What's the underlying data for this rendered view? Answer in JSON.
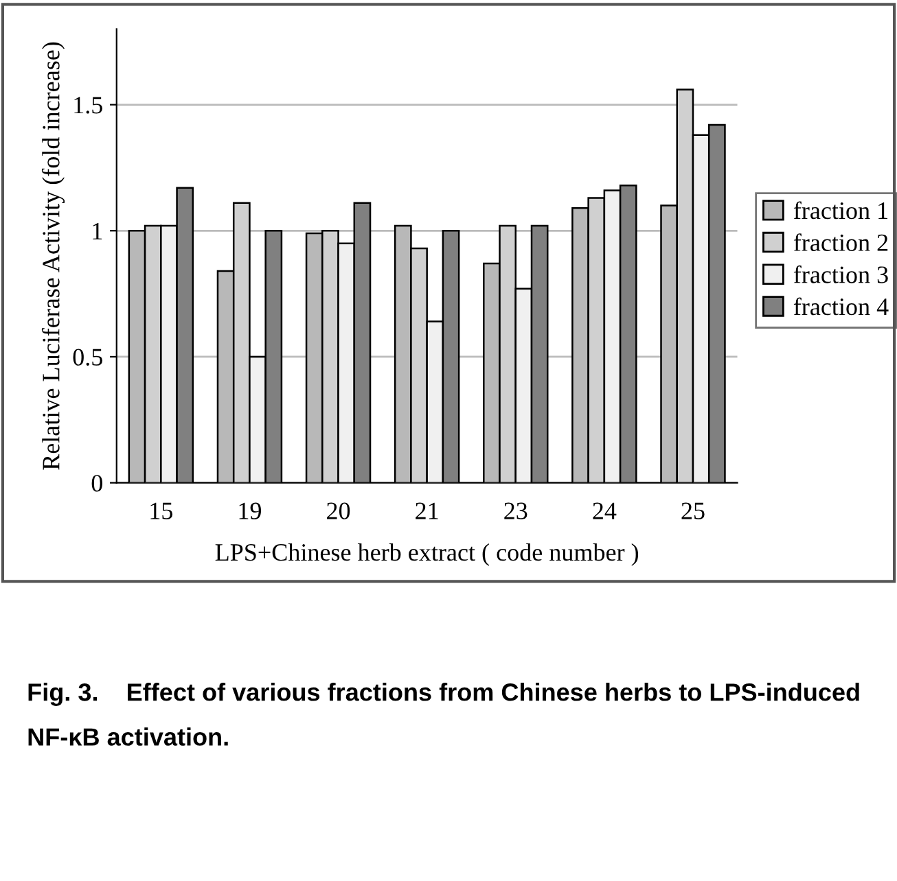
{
  "chart_data": {
    "type": "bar",
    "categories": [
      "15",
      "19",
      "20",
      "21",
      "23",
      "24",
      "25"
    ],
    "series": [
      {
        "name": "fraction 1",
        "color": "#b8b8b8",
        "values": [
          1.0,
          0.84,
          0.99,
          1.02,
          0.87,
          1.09,
          1.1
        ]
      },
      {
        "name": "fraction 2",
        "color": "#d0d0d0",
        "values": [
          1.02,
          1.11,
          1.0,
          0.93,
          1.02,
          1.13,
          1.56
        ]
      },
      {
        "name": "fraction 3",
        "color": "#f0f0f0",
        "values": [
          1.02,
          0.5,
          0.95,
          0.64,
          0.77,
          1.16,
          1.38
        ]
      },
      {
        "name": "fraction 4",
        "color": "#808080",
        "values": [
          1.17,
          1.0,
          1.11,
          1.0,
          1.02,
          1.18,
          1.42
        ]
      }
    ],
    "xlabel": "LPS+Chinese herb extract ( code number )",
    "ylabel": "Relative Luciferase Activity (fold increase)",
    "ylim": [
      0,
      1.8
    ],
    "yticks": [
      0,
      {
        "value": 0.5,
        "label": "0.5"
      },
      1,
      {
        "value": 1.5,
        "label": "1.5"
      }
    ],
    "grid": "y",
    "legend": "right",
    "annotations": [
      "Fig. 3.    Effect of various fractions from Chinese herbs to LPS-induced NF-κB activation."
    ]
  }
}
